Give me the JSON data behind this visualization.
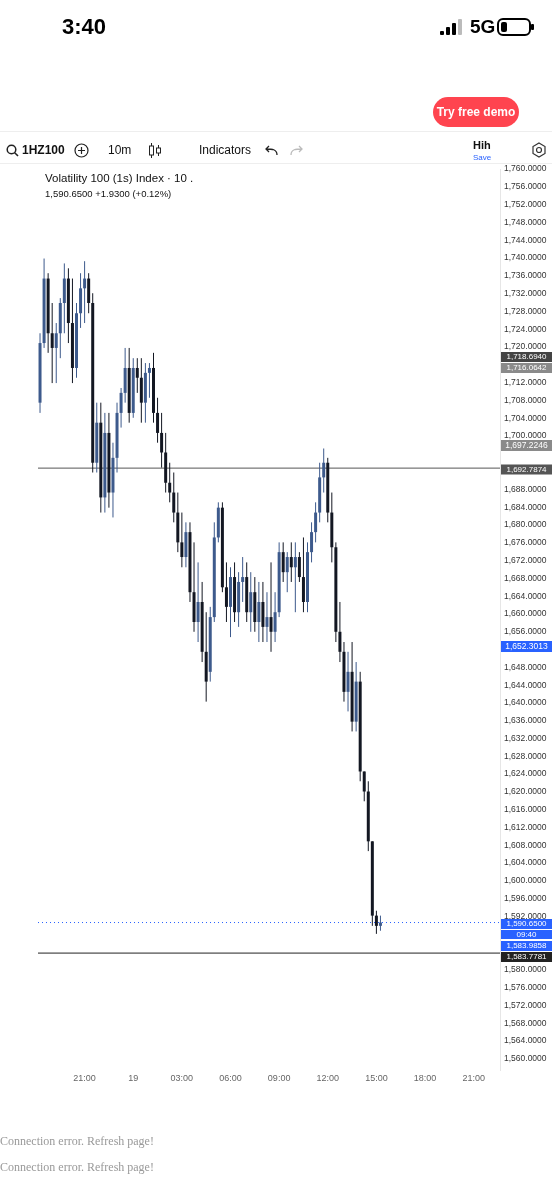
{
  "chart_data": {
    "type": "candlestick",
    "title": "Volatility 100 (1s) Index · 10 .",
    "subtitle": "1,590.6500 +1.9300 (+0.12%)",
    "categories": [
      null,
      null,
      null,
      null,
      null,
      null,
      null,
      null,
      null,
      null,
      null,
      "21:00",
      null,
      null,
      null,
      null,
      null,
      null,
      null,
      null,
      null,
      null,
      null,
      "19",
      null,
      null,
      null,
      null,
      null,
      null,
      null,
      null,
      null,
      null,
      null,
      "03:00",
      null,
      null,
      null,
      null,
      null,
      null,
      null,
      null,
      null,
      null,
      null,
      "06:00",
      null,
      null,
      null,
      null,
      null,
      null,
      null,
      null,
      null,
      null,
      null,
      "09:00",
      null,
      null,
      null,
      null,
      null,
      null,
      null,
      null,
      null,
      null,
      null,
      "12:00",
      null,
      null,
      null,
      null,
      null,
      null,
      null,
      null,
      null,
      null,
      null,
      "15:00",
      null,
      null,
      null,
      null,
      null,
      null,
      null,
      null,
      null,
      null,
      null,
      "18:00",
      null,
      null,
      null,
      null,
      null,
      null,
      null,
      null,
      null,
      null,
      null,
      "21:00",
      null,
      null,
      null,
      null,
      null,
      null
    ],
    "colors": [
      "#3d5a8c",
      "#3d5a8c",
      "#131722",
      "#131722",
      "#3d5a8c",
      "#3d5a8c",
      "#3d5a8c",
      "#131722",
      "#131722",
      "#3d5a8c",
      "#3d5a8c",
      "#3d5a8c",
      "#131722",
      "#131722",
      "#3d5a8c",
      "#131722",
      "#3d5a8c",
      "#131722",
      "#3d5a8c",
      "#3d5a8c",
      "#3d5a8c",
      "#3d5a8c",
      "#131722",
      "#3d5a8c",
      "#131722",
      "#131722",
      "#3d5a8c",
      "#3d5a8c",
      "#131722",
      "#131722",
      "#131722",
      "#131722",
      "#131722",
      "#131722",
      "#131722",
      "#131722",
      "#3d5a8c",
      "#131722",
      "#131722",
      "#3d5a8c",
      "#131722",
      "#131722",
      "#3d5a8c",
      "#3d5a8c",
      "#3d5a8c",
      "#131722",
      "#131722",
      "#3d5a8c",
      "#131722",
      "#3d5a8c",
      "#3d5a8c",
      "#131722",
      "#3d5a8c",
      "#131722",
      "#3d5a8c",
      "#131722",
      "#3d5a8c",
      "#131722",
      "#3d5a8c",
      "#3d5a8c",
      "#131722",
      "#3d5a8c",
      "#131722",
      "#3d5a8c",
      "#131722",
      "#131722",
      "#3d5a8c",
      "#3d5a8c",
      "#3d5a8c",
      "#3d5a8c",
      "#3d5a8c",
      "#131722",
      "#131722",
      "#131722",
      "#131722",
      "#131722",
      "#3d5a8c",
      "#131722",
      "#3d5a8c",
      "#131722",
      "#131722",
      "#131722",
      "#131722",
      "#131722",
      "#3d5a8c",
      null,
      null,
      null,
      null,
      null,
      null,
      null,
      null,
      null,
      null,
      null,
      null,
      null,
      null,
      null,
      null,
      null,
      null,
      null,
      null,
      null,
      null,
      null,
      null,
      null,
      null,
      null,
      null,
      null
    ],
    "ohlc": [
      [
        1707.5,
        1723.1,
        1705.2,
        1720.9
      ],
      [
        1720.9,
        1739.9,
        1719.8,
        1735.4
      ],
      [
        1735.4,
        1736.6,
        1718.7,
        1723.1
      ],
      [
        1723.1,
        1729.9,
        1711.9,
        1719.8
      ],
      [
        1719.8,
        1725.4,
        1711.9,
        1723.1
      ],
      [
        1723.1,
        1731.0,
        1717.5,
        1729.9
      ],
      [
        1729.9,
        1738.8,
        1723.1,
        1735.4
      ],
      [
        1735.4,
        1737.7,
        1720.9,
        1725.4
      ],
      [
        1725.4,
        1735.4,
        1711.9,
        1715.3
      ],
      [
        1715.3,
        1729.9,
        1713.1,
        1727.6
      ],
      [
        1727.6,
        1736.6,
        1724.3,
        1733.2
      ],
      [
        1733.2,
        1739.3,
        1725.4,
        1735.4
      ],
      [
        1735.4,
        1736.6,
        1727.6,
        1729.9
      ],
      [
        1729.9,
        1732.1,
        1691.8,
        1694.0
      ],
      [
        1694.0,
        1707.5,
        1691.8,
        1703.0
      ],
      [
        1703.0,
        1707.5,
        1682.8,
        1686.2
      ],
      [
        1686.2,
        1705.2,
        1682.8,
        1700.7
      ],
      [
        1700.7,
        1705.2,
        1683.9,
        1687.3
      ],
      [
        1687.3,
        1698.5,
        1681.7,
        1695.1
      ],
      [
        1695.1,
        1707.5,
        1691.8,
        1705.2
      ],
      [
        1705.2,
        1710.8,
        1701.9,
        1709.7
      ],
      [
        1709.7,
        1719.8,
        1707.5,
        1715.3
      ],
      [
        1715.3,
        1719.8,
        1703.0,
        1705.2
      ],
      [
        1705.2,
        1717.5,
        1704.1,
        1715.3
      ],
      [
        1715.3,
        1717.5,
        1709.7,
        1713.1
      ],
      [
        1713.1,
        1717.5,
        1703.0,
        1707.5
      ],
      [
        1707.5,
        1716.4,
        1703.0,
        1714.2
      ],
      [
        1714.2,
        1716.4,
        1708.6,
        1715.3
      ],
      [
        1715.3,
        1718.7,
        1703.0,
        1705.2
      ],
      [
        1705.2,
        1708.6,
        1698.5,
        1700.7
      ],
      [
        1700.7,
        1705.2,
        1692.9,
        1696.3
      ],
      [
        1696.3,
        1700.7,
        1687.3,
        1689.5
      ],
      [
        1689.5,
        1694.0,
        1685.1,
        1687.3
      ],
      [
        1687.3,
        1691.8,
        1680.6,
        1682.8
      ],
      [
        1682.8,
        1687.3,
        1673.9,
        1676.1
      ],
      [
        1676.1,
        1682.8,
        1670.5,
        1672.8
      ],
      [
        1672.8,
        1680.6,
        1670.5,
        1678.4
      ],
      [
        1678.4,
        1680.6,
        1662.7,
        1664.9
      ],
      [
        1664.9,
        1676.1,
        1656.0,
        1658.2
      ],
      [
        1658.2,
        1671.6,
        1653.7,
        1662.7
      ],
      [
        1662.7,
        1667.2,
        1649.2,
        1651.5
      ],
      [
        1651.5,
        1660.4,
        1640.3,
        1644.8
      ],
      [
        1647.0,
        1661.6,
        1644.8,
        1659.3
      ],
      [
        1659.3,
        1680.6,
        1658.2,
        1677.2
      ],
      [
        1677.2,
        1685.1,
        1676.1,
        1683.9
      ],
      [
        1683.9,
        1685.1,
        1664.9,
        1666.0
      ],
      [
        1666.0,
        1671.6,
        1658.2,
        1661.6
      ],
      [
        1661.6,
        1670.5,
        1654.8,
        1668.3
      ],
      [
        1668.3,
        1671.6,
        1658.2,
        1660.4
      ],
      [
        1660.4,
        1669.4,
        1657.1,
        1667.2
      ],
      [
        1667.2,
        1672.8,
        1662.7,
        1668.3
      ],
      [
        1668.3,
        1671.6,
        1658.2,
        1660.4
      ],
      [
        1660.4,
        1669.4,
        1656.0,
        1664.9
      ],
      [
        1664.9,
        1668.3,
        1656.0,
        1658.2
      ],
      [
        1658.2,
        1667.2,
        1653.7,
        1662.7
      ],
      [
        1662.7,
        1667.2,
        1653.7,
        1657.1
      ],
      [
        1657.1,
        1664.9,
        1653.7,
        1659.3
      ],
      [
        1659.3,
        1671.6,
        1651.5,
        1656.0
      ],
      [
        1656.0,
        1664.9,
        1653.7,
        1660.4
      ],
      [
        1660.4,
        1676.1,
        1659.3,
        1673.9
      ],
      [
        1673.9,
        1676.1,
        1667.2,
        1669.4
      ],
      [
        1669.4,
        1673.9,
        1664.9,
        1672.8
      ],
      [
        1672.8,
        1676.1,
        1667.2,
        1670.5
      ],
      [
        1670.5,
        1676.1,
        1660.4,
        1672.8
      ],
      [
        1672.8,
        1673.9,
        1667.2,
        1668.3
      ],
      [
        1668.3,
        1677.2,
        1660.4,
        1662.7
      ],
      [
        1662.7,
        1676.1,
        1660.4,
        1673.9
      ],
      [
        1673.9,
        1680.6,
        1671.6,
        1678.4
      ],
      [
        1678.4,
        1685.1,
        1676.1,
        1682.8
      ],
      [
        1682.8,
        1694.0,
        1680.6,
        1690.7
      ],
      [
        1690.7,
        1697.2,
        1687.3,
        1694.0
      ],
      [
        1694.0,
        1695.1,
        1680.6,
        1682.8
      ],
      [
        1682.8,
        1687.3,
        1671.6,
        1675.0
      ],
      [
        1675.0,
        1676.1,
        1653.7,
        1656.0
      ],
      [
        1656.0,
        1662.7,
        1649.2,
        1651.5
      ],
      [
        1651.5,
        1653.7,
        1640.3,
        1642.5
      ],
      [
        1642.5,
        1651.5,
        1638.1,
        1647.0
      ],
      [
        1647.0,
        1653.7,
        1633.6,
        1635.8
      ],
      [
        1635.8,
        1649.2,
        1633.6,
        1644.8
      ],
      [
        1644.8,
        1647.0,
        1622.4,
        1624.6
      ],
      [
        1624.6,
        1624.6,
        1617.9,
        1620.1
      ],
      [
        1620.1,
        1622.4,
        1606.7,
        1608.9
      ],
      [
        1608.9,
        1608.9,
        1589.9,
        1592.2
      ],
      [
        1592.2,
        1593.3,
        1588.1,
        1589.9
      ],
      [
        1589.9,
        1592.2,
        1588.8,
        1590.65
      ],
      null,
      null,
      null,
      null,
      null,
      null,
      null,
      null,
      null,
      null,
      null,
      null,
      null,
      null,
      null,
      null,
      null,
      null,
      null,
      null,
      null,
      null,
      null,
      null,
      null,
      null,
      null,
      null,
      null
    ],
    "ylim": [
      1557.5,
      1760
    ],
    "yticks": [
      {
        "value": 1560,
        "label": "1,560.0000"
      },
      {
        "value": 1564,
        "label": "1,564.0000"
      },
      {
        "value": 1568,
        "label": "1,568.0000"
      },
      {
        "value": 1572,
        "label": "1,572.0000"
      },
      {
        "value": 1576,
        "label": "1,576.0000"
      },
      {
        "value": 1580,
        "label": "1,580.0000"
      },
      {
        "value": 1592,
        "label": "1,592.0000"
      },
      {
        "value": 1596,
        "label": "1,596.0000"
      },
      {
        "value": 1600,
        "label": "1,600.0000"
      },
      {
        "value": 1604,
        "label": "1,604.0000"
      },
      {
        "value": 1608,
        "label": "1,608.0000"
      },
      {
        "value": 1612,
        "label": "1,612.0000"
      },
      {
        "value": 1616,
        "label": "1,616.0000"
      },
      {
        "value": 1620,
        "label": "1,620.0000"
      },
      {
        "value": 1624,
        "label": "1,624.0000"
      },
      {
        "value": 1628,
        "label": "1,628.0000"
      },
      {
        "value": 1632,
        "label": "1,632.0000"
      },
      {
        "value": 1636,
        "label": "1,636.0000"
      },
      {
        "value": 1640,
        "label": "1,640.0000"
      },
      {
        "value": 1644,
        "label": "1,644.0000"
      },
      {
        "value": 1648,
        "label": "1,648.0000"
      },
      {
        "value": 1656,
        "label": "1,656.0000"
      },
      {
        "value": 1660,
        "label": "1,660.0000"
      },
      {
        "value": 1664,
        "label": "1,664.0000"
      },
      {
        "value": 1668,
        "label": "1,668.0000"
      },
      {
        "value": 1672,
        "label": "1,672.0000"
      },
      {
        "value": 1676,
        "label": "1,676.0000"
      },
      {
        "value": 1680,
        "label": "1,680.0000"
      },
      {
        "value": 1684,
        "label": "1,684.0000"
      },
      {
        "value": 1688,
        "label": "1,688.0000"
      },
      {
        "value": 1700,
        "label": "1,700.0000"
      },
      {
        "value": 1704,
        "label": "1,704.0000"
      },
      {
        "value": 1708,
        "label": "1,708.0000"
      },
      {
        "value": 1712,
        "label": "1,712.0000"
      },
      {
        "value": 1720,
        "label": "1,720.0000"
      },
      {
        "value": 1724,
        "label": "1,724.0000"
      },
      {
        "value": 1728,
        "label": "1,728.0000"
      },
      {
        "value": 1732,
        "label": "1,732.0000"
      },
      {
        "value": 1736,
        "label": "1,736.0000"
      },
      {
        "value": 1740,
        "label": "1,740.0000"
      },
      {
        "value": 1744,
        "label": "1,744.0000"
      },
      {
        "value": 1748,
        "label": "1,748.0000"
      },
      {
        "value": 1752,
        "label": "1,752.0000"
      },
      {
        "value": 1756,
        "label": "1,756.0000"
      },
      {
        "value": 1760,
        "label": "1,760.0000"
      }
    ],
    "ref_lines": [
      {
        "axis": "y",
        "value": 1692.7874,
        "label": "1,692.7874",
        "color": "#555555",
        "line_style": "solid"
      },
      {
        "axis": "y",
        "value": 1590.65,
        "label": "1,590.6500",
        "color": "#2962ff",
        "line_style": "dotted"
      },
      {
        "axis": "y",
        "value": 1583.7781,
        "label": "1,583.7781",
        "color": "#222222",
        "line_style": "solid"
      }
    ],
    "annotations": [
      "3:40",
      "5G",
      "Try free demo",
      "1HZ100",
      "10m",
      "Indicators",
      "Hih",
      "Save",
      "09:40",
      "Connection error. Refresh page!",
      "Connection error. Refresh page!",
      "1,718.6940",
      "1,716.0642",
      "1,697.2246",
      "1,652.3013",
      "1,583.9858"
    ]
  }
}
